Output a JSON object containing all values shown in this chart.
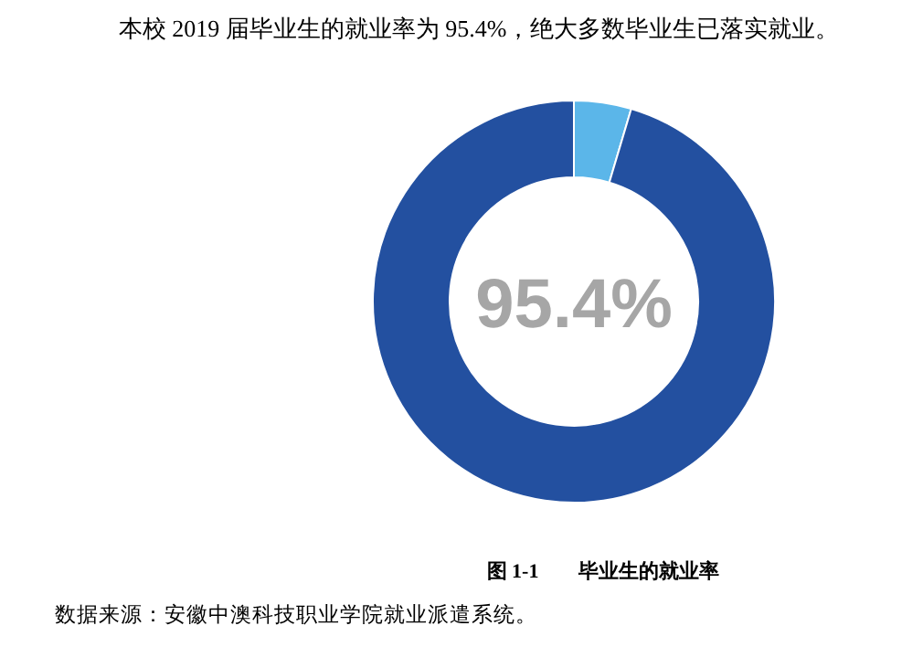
{
  "chart_data": {
    "type": "donut",
    "title": "本校 2019 届毕业生的就业率为 95.4%，绝大多数毕业生已落实就业。",
    "categories": [
      null,
      null
    ],
    "values": [
      4.6,
      95.4
    ],
    "colors": [
      "#5bb6e9",
      "#2350a0"
    ],
    "annotations": [
      "95.4%",
      "图 1-1　　毕业生的就业率",
      "数据来源：安徽中澳科技职业学院就业派遣系统。"
    ]
  }
}
